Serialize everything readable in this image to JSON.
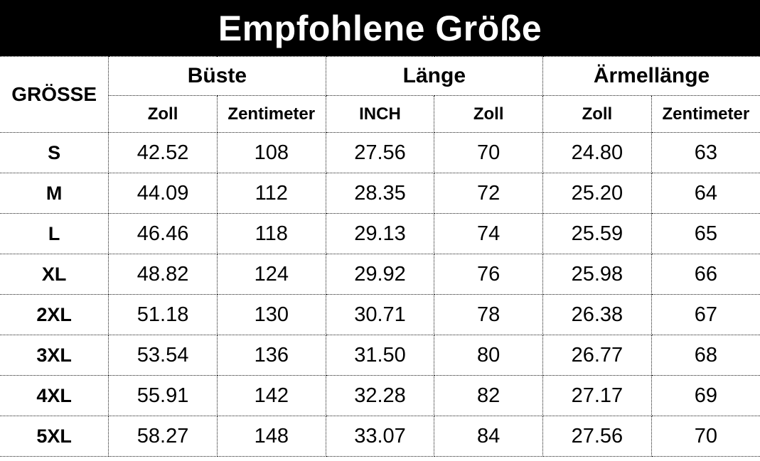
{
  "title": "Empfohlene Größe",
  "table": {
    "size_column_header": "GRÖSSE",
    "groups": [
      {
        "label": "Büste",
        "sub": [
          "Zoll",
          "Zentimeter"
        ]
      },
      {
        "label": "Länge",
        "sub": [
          "INCH",
          "Zoll"
        ]
      },
      {
        "label": "Ärmellänge",
        "sub": [
          "Zoll",
          "Zentimeter"
        ]
      }
    ],
    "rows": [
      {
        "size": "S",
        "values": [
          "42.52",
          "108",
          "27.56",
          "70",
          "24.80",
          "63"
        ]
      },
      {
        "size": "M",
        "values": [
          "44.09",
          "112",
          "28.35",
          "72",
          "25.20",
          "64"
        ]
      },
      {
        "size": "L",
        "values": [
          "46.46",
          "118",
          "29.13",
          "74",
          "25.59",
          "65"
        ]
      },
      {
        "size": "XL",
        "values": [
          "48.82",
          "124",
          "29.92",
          "76",
          "25.98",
          "66"
        ]
      },
      {
        "size": "2XL",
        "values": [
          "51.18",
          "130",
          "30.71",
          "78",
          "26.38",
          "67"
        ]
      },
      {
        "size": "3XL",
        "values": [
          "53.54",
          "136",
          "31.50",
          "80",
          "26.77",
          "68"
        ]
      },
      {
        "size": "4XL",
        "values": [
          "55.91",
          "142",
          "32.28",
          "82",
          "27.17",
          "69"
        ]
      },
      {
        "size": "5XL",
        "values": [
          "58.27",
          "148",
          "33.07",
          "84",
          "27.56",
          "70"
        ]
      }
    ]
  },
  "colors": {
    "banner_background": "#000000",
    "banner_text": "#ffffff",
    "table_text": "#000000",
    "border": "#1a1a1a",
    "background": "#ffffff"
  }
}
